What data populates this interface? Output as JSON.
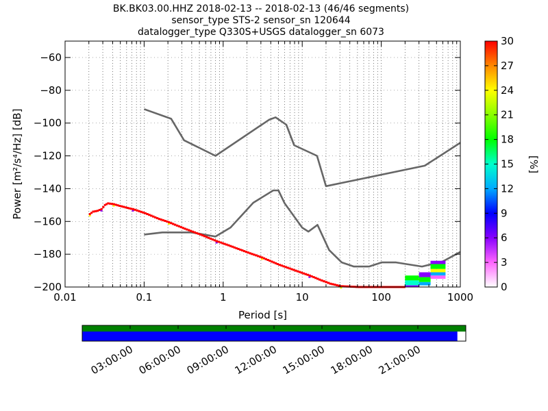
{
  "title_lines": [
    "BK.BK03.00.HHZ   2018-02-13 -- 2018-02-13  (46/46 segments)",
    "sensor_type STS-2 sensor_sn 120644",
    "datalogger_type Q330S+USGS datalogger_sn 6073"
  ],
  "chart_data": {
    "type": "heatmap",
    "subtype": "probabilistic-power-spectral-density",
    "xlabel": "Period [s]",
    "ylabel": "Power [m²/s⁴/Hz] [dB]",
    "x_scale": "log",
    "xlim": [
      0.01,
      1000
    ],
    "ylim": [
      -200,
      -50
    ],
    "x_ticks": [
      0.01,
      0.1,
      1,
      10,
      100,
      1000
    ],
    "x_tick_labels": [
      "0.01",
      "0.1",
      "1",
      "10",
      "100",
      "1000"
    ],
    "y_ticks": [
      -200,
      -180,
      -160,
      -140,
      -120,
      -100,
      -80,
      -60
    ],
    "y_tick_labels": [
      "−200",
      "−180",
      "−160",
      "−140",
      "−120",
      "−100",
      "−80",
      "−60"
    ],
    "grid": "dotted-vertical",
    "colorbar": {
      "label": "[%]",
      "range": [
        0,
        30
      ],
      "ticks": [
        0,
        3,
        6,
        9,
        12,
        15,
        18,
        21,
        24,
        27,
        30
      ],
      "colormap": "pqlx"
    },
    "noise_models": [
      {
        "role": "high-noise-model",
        "color": "#666666",
        "points": [
          [
            0.1,
            -91.5
          ],
          [
            0.22,
            -97.4
          ],
          [
            0.32,
            -110.5
          ],
          [
            0.8,
            -120
          ],
          [
            3.8,
            -98
          ],
          [
            4.6,
            -96.5
          ],
          [
            6.3,
            -101
          ],
          [
            7.9,
            -113.5
          ],
          [
            15.4,
            -120
          ],
          [
            20,
            -138.5
          ],
          [
            354.8,
            -126
          ],
          [
            1000,
            -112
          ]
        ]
      },
      {
        "role": "low-noise-model",
        "color": "#666666",
        "points": [
          [
            0.1,
            -168
          ],
          [
            0.17,
            -166.7
          ],
          [
            0.4,
            -166.7
          ],
          [
            0.8,
            -169.2
          ],
          [
            1.24,
            -163.7
          ],
          [
            2.4,
            -148.6
          ],
          [
            4.3,
            -141.1
          ],
          [
            5,
            -141.1
          ],
          [
            6,
            -149
          ],
          [
            10,
            -163.8
          ],
          [
            12,
            -166.2
          ],
          [
            15.6,
            -162.1
          ],
          [
            21.9,
            -177.5
          ],
          [
            31.6,
            -185
          ],
          [
            45,
            -187.5
          ],
          [
            70,
            -187.5
          ],
          [
            101,
            -185
          ],
          [
            154,
            -185
          ],
          [
            328,
            -187.5
          ],
          [
            600,
            -184.4
          ],
          [
            1000,
            -178.6
          ]
        ]
      }
    ],
    "ppsd_trace": {
      "points": [
        [
          0.02,
          -155.5
        ],
        [
          0.022,
          -154
        ],
        [
          0.025,
          -153.5
        ],
        [
          0.028,
          -152.5
        ],
        [
          0.031,
          -150
        ],
        [
          0.034,
          -149
        ],
        [
          0.04,
          -149.5
        ],
        [
          0.05,
          -150.8
        ],
        [
          0.06,
          -151.8
        ],
        [
          0.07,
          -152.5
        ],
        [
          0.1,
          -155
        ],
        [
          0.15,
          -158.5
        ],
        [
          0.2,
          -160.5
        ],
        [
          0.3,
          -164
        ],
        [
          0.5,
          -168
        ],
        [
          0.8,
          -172
        ],
        [
          1.2,
          -175
        ],
        [
          2,
          -179
        ],
        [
          3,
          -182
        ],
        [
          5,
          -186.5
        ],
        [
          8,
          -190
        ],
        [
          12,
          -193
        ],
        [
          17,
          -196
        ],
        [
          22,
          -198
        ],
        [
          30,
          -199.5
        ],
        [
          50,
          -200
        ],
        [
          100,
          -200
        ],
        [
          200,
          -200
        ]
      ],
      "dominant_percent": 30
    },
    "long_period_blocks": [
      {
        "x": [
          200,
          300
        ],
        "y": [
          -196,
          -193
        ],
        "percent": 18
      },
      {
        "x": [
          200,
          300
        ],
        "y": [
          -199,
          -196
        ],
        "percent": 15
      },
      {
        "x": [
          200,
          300
        ],
        "y": [
          -200,
          -199
        ],
        "percent": 6
      },
      {
        "x": [
          300,
          420
        ],
        "y": [
          -194,
          -191
        ],
        "percent": 6
      },
      {
        "x": [
          300,
          420
        ],
        "y": [
          -197,
          -194
        ],
        "percent": 18
      },
      {
        "x": [
          300,
          420
        ],
        "y": [
          -199,
          -197
        ],
        "percent": 12
      },
      {
        "x": [
          420,
          650
        ],
        "y": [
          -186,
          -184
        ],
        "percent": 6
      },
      {
        "x": [
          420,
          650
        ],
        "y": [
          -189,
          -186
        ],
        "percent": 18
      },
      {
        "x": [
          420,
          650
        ],
        "y": [
          -191,
          -189
        ],
        "percent": 24
      },
      {
        "x": [
          420,
          650
        ],
        "y": [
          -193,
          -191
        ],
        "percent": 12
      },
      {
        "x": [
          420,
          650
        ],
        "y": [
          -195,
          -193
        ],
        "percent": 3
      }
    ]
  },
  "timeline": {
    "tick_labels": [
      "03:00:00",
      "06:00:00",
      "09:00:00",
      "12:00:00",
      "15:00:00",
      "18:00:00",
      "21:00:00"
    ],
    "tick_fractions": [
      0.0,
      0.125,
      0.25,
      0.375,
      0.5,
      0.625,
      0.75
    ],
    "top_bar_color": "#008000",
    "bottom_bar_color": "#0000ff",
    "coverage_fraction": 0.978
  }
}
